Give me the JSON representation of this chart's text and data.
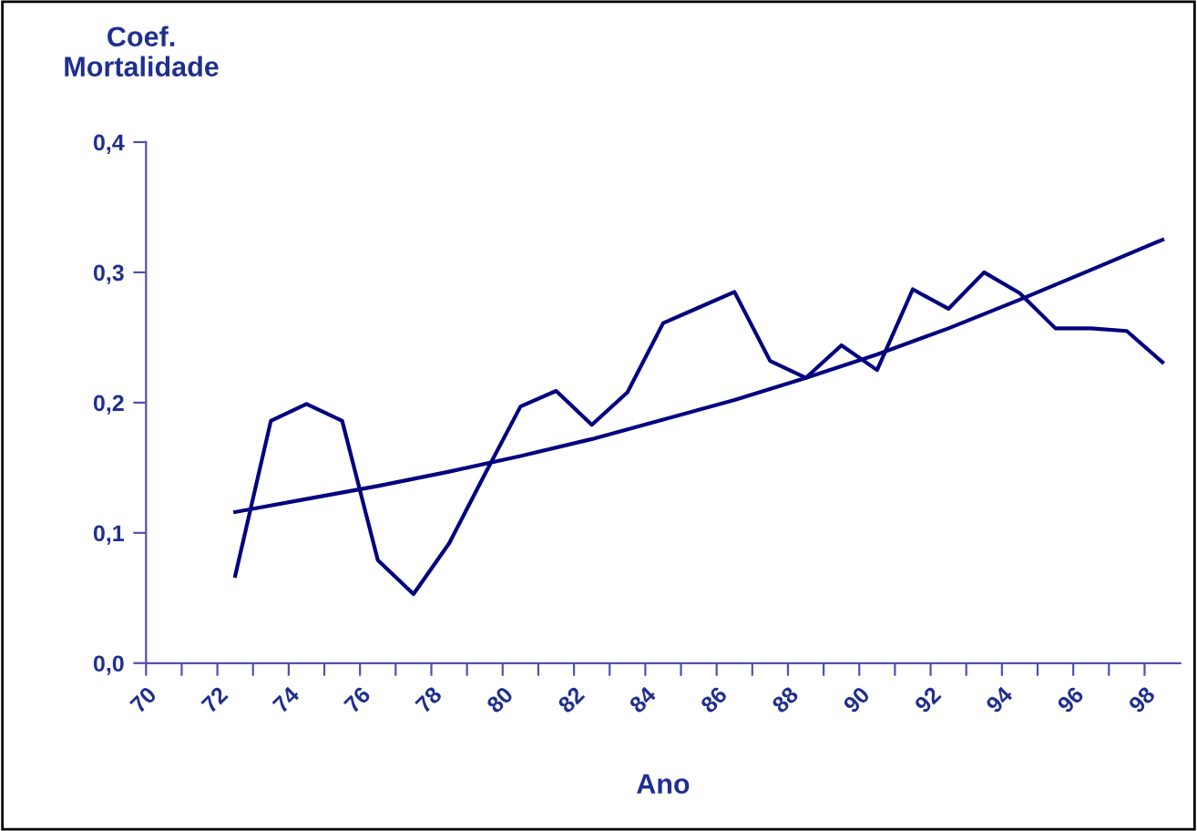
{
  "chart_data": {
    "type": "line",
    "ylabel": "Coef.\nMortalidade",
    "xlabel": "Ano",
    "xlim": [
      70,
      99
    ],
    "xticks": [
      70,
      {
        "value": 71,
        "label": null
      },
      72,
      {
        "value": 73,
        "label": null
      },
      74,
      {
        "value": 75,
        "label": null
      },
      76,
      {
        "value": 77,
        "label": null
      },
      78,
      {
        "value": 79,
        "label": null
      },
      80,
      {
        "value": 81,
        "label": null
      },
      82,
      {
        "value": 83,
        "label": null
      },
      84,
      {
        "value": 85,
        "label": null
      },
      86,
      {
        "value": 87,
        "label": null
      },
      88,
      {
        "value": 89,
        "label": null
      },
      90,
      {
        "value": 91,
        "label": null
      },
      92,
      {
        "value": 93,
        "label": null
      },
      94,
      {
        "value": 95,
        "label": null
      },
      96,
      {
        "value": 97,
        "label": null
      },
      98
    ],
    "ylim": [
      0,
      0.4
    ],
    "yticks": [
      {
        "value": 0,
        "label": "0,0"
      },
      {
        "value": 0.1,
        "label": "0,1"
      },
      {
        "value": 0.2,
        "label": "0,2"
      },
      {
        "value": 0.3,
        "label": "0,3"
      },
      {
        "value": 0.4,
        "label": "0,4"
      }
    ],
    "grid": false,
    "legend": false,
    "marker": "none",
    "line_style": "solid",
    "series": [
      {
        "color": "#000080",
        "x": [
          72.5,
          73.5,
          74.5,
          75.5,
          76.5,
          77.5,
          78.5,
          79.5,
          80.5,
          81.5,
          82.5,
          83.5,
          84.5,
          85.5,
          86.5,
          87.5,
          88.5,
          89.5,
          90.5,
          91.5,
          92.5,
          93.5,
          94.5,
          95.5,
          96.5,
          97.5,
          98.5
        ],
        "values": [
          0.067,
          0.186,
          0.199,
          0.186,
          0.079,
          0.053,
          0.092,
          0.145,
          0.197,
          0.209,
          0.183,
          0.208,
          0.261,
          0.273,
          0.285,
          0.232,
          0.219,
          0.244,
          0.225,
          0.287,
          0.272,
          0.3,
          0.284,
          0.257,
          0.257,
          0.255,
          0.231
        ]
      },
      {
        "color": "#000080",
        "x": [
          72.5,
          74.5,
          76.5,
          78.5,
          80.5,
          82.5,
          84.5,
          86.5,
          88.5,
          90.5,
          92.5,
          94.5,
          96.5,
          98.5
        ],
        "values": [
          0.116,
          0.126,
          0.136,
          0.147,
          0.159,
          0.172,
          0.187,
          0.202,
          0.219,
          0.237,
          0.257,
          0.279,
          0.302,
          0.325
        ]
      }
    ]
  }
}
